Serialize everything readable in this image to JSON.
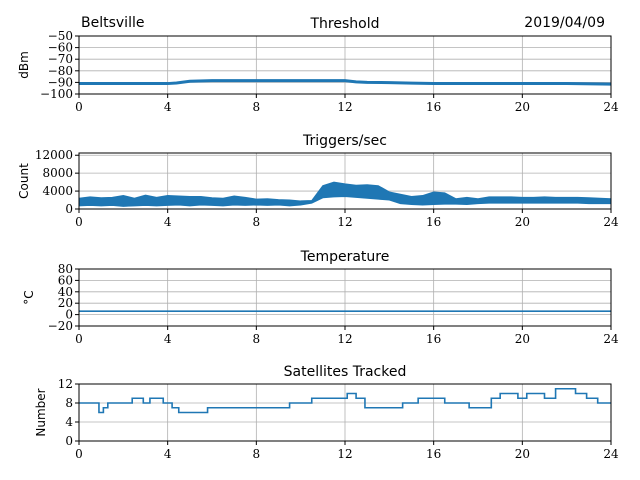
{
  "header": {
    "site": "Beltsville",
    "date": "2019/04/09"
  },
  "colors": {
    "line": "#1f77b4",
    "grid": "#b0b0b0"
  },
  "chart_data": [
    {
      "type": "line",
      "title": "Threshold",
      "ylabel": "dBm",
      "xlim": [
        0,
        24
      ],
      "ylim": [
        -100,
        -50
      ],
      "xticks": [
        0,
        4,
        8,
        12,
        16,
        20,
        24
      ],
      "yticks": [
        -100,
        -90,
        -80,
        -70,
        -60,
        -50
      ],
      "ytick_labels": [
        "−100",
        "−90",
        "−80",
        "−70",
        "−60",
        "−50"
      ],
      "grid": true,
      "x": [
        0,
        2,
        4,
        4.4,
        5,
        6,
        8,
        10,
        12,
        12.5,
        13,
        14,
        15,
        16,
        18,
        20,
        22,
        24
      ],
      "y": [
        -91,
        -91,
        -91,
        -90.5,
        -89,
        -88.5,
        -88.5,
        -88.5,
        -88.5,
        -89.5,
        -90,
        -90.2,
        -90.6,
        -91,
        -91,
        -91,
        -91,
        -91.5
      ]
    },
    {
      "type": "area",
      "title": "Triggers/sec",
      "ylabel": "Count",
      "xlim": [
        0,
        24
      ],
      "ylim": [
        0,
        12500
      ],
      "xticks": [
        0,
        4,
        8,
        12,
        16,
        20,
        24
      ],
      "yticks": [
        0,
        4000,
        8000,
        12000
      ],
      "ytick_labels": [
        "0",
        "4000",
        "8000",
        "12000"
      ],
      "grid": true,
      "x": [
        0,
        0.5,
        1,
        1.5,
        2,
        2.5,
        3,
        3.5,
        4,
        4.5,
        5,
        5.5,
        6,
        6.5,
        7,
        7.5,
        8,
        8.5,
        9,
        9.5,
        10,
        10.5,
        11,
        11.5,
        12,
        12.5,
        13,
        13.5,
        14,
        14.5,
        15,
        15.5,
        16,
        16.5,
        17,
        17.5,
        18,
        18.5,
        19,
        19.5,
        20,
        20.5,
        21,
        21.5,
        22,
        22.5,
        23,
        23.5,
        24
      ],
      "low": [
        700,
        800,
        700,
        800,
        600,
        700,
        800,
        700,
        800,
        900,
        700,
        900,
        800,
        700,
        900,
        800,
        900,
        800,
        900,
        700,
        900,
        1300,
        2500,
        2700,
        2800,
        2600,
        2400,
        2200,
        2000,
        1200,
        1000,
        900,
        1000,
        1100,
        1100,
        1000,
        1200,
        1300,
        1300,
        1300,
        1300,
        1300,
        1300,
        1300,
        1300,
        1300,
        1200,
        1200,
        1200
      ],
      "high": [
        2400,
        2700,
        2500,
        2600,
        3000,
        2400,
        3100,
        2600,
        3000,
        2900,
        2800,
        2800,
        2500,
        2400,
        2900,
        2600,
        2200,
        2300,
        2100,
        2000,
        1800,
        1900,
        5200,
        6000,
        5600,
        5300,
        5400,
        5200,
        3800,
        3300,
        2800,
        3000,
        3800,
        3600,
        2300,
        2600,
        2300,
        2700,
        2700,
        2700,
        2600,
        2600,
        2700,
        2600,
        2600,
        2600,
        2500,
        2400,
        2300
      ]
    },
    {
      "type": "line",
      "title": "Temperature",
      "ylabel": "°C",
      "xlim": [
        0,
        24
      ],
      "ylim": [
        -20,
        80
      ],
      "xticks": [
        0,
        4,
        8,
        12,
        16,
        20,
        24
      ],
      "yticks": [
        -20,
        0,
        20,
        40,
        60,
        80
      ],
      "ytick_labels": [
        "−20",
        "0",
        "20",
        "40",
        "60",
        "80"
      ],
      "grid": true,
      "x": [
        0,
        24
      ],
      "y": [
        6,
        6
      ]
    },
    {
      "type": "line",
      "title": "Satellites Tracked",
      "ylabel": "Number",
      "xlim": [
        0,
        24
      ],
      "ylim": [
        0,
        12
      ],
      "xticks": [
        0,
        4,
        8,
        12,
        16,
        20,
        24
      ],
      "yticks": [
        0,
        4,
        8,
        12
      ],
      "ytick_labels": [
        "0",
        "4",
        "8",
        "12"
      ],
      "grid": true,
      "step": true,
      "x": [
        0,
        0.9,
        1.1,
        1.3,
        2.4,
        2.9,
        3.2,
        3.8,
        4.2,
        4.5,
        5.8,
        9.5,
        10.5,
        11.2,
        12.1,
        12.5,
        12.9,
        14.6,
        15.3,
        16.5,
        17.6,
        18.6,
        19,
        19.8,
        20.2,
        21,
        21.5,
        22.4,
        22.9,
        23.4,
        24
      ],
      "y": [
        8,
        6,
        7,
        8,
        9,
        8,
        9,
        8,
        7,
        6,
        7,
        8,
        9,
        9,
        10,
        9,
        7,
        8,
        9,
        8,
        7,
        9,
        10,
        9,
        10,
        9,
        11,
        10,
        9,
        8,
        8
      ]
    }
  ]
}
